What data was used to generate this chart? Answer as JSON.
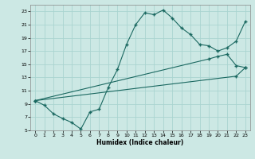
{
  "xlabel": "Humidex (Indice chaleur)",
  "bg_color": "#cce8e4",
  "grid_color": "#aad4d0",
  "line_color": "#1a6860",
  "xlim": [
    -0.5,
    23.5
  ],
  "ylim": [
    5,
    24
  ],
  "xticks": [
    0,
    1,
    2,
    3,
    4,
    5,
    6,
    7,
    8,
    9,
    10,
    11,
    12,
    13,
    14,
    15,
    16,
    17,
    18,
    19,
    20,
    21,
    22,
    23
  ],
  "yticks": [
    5,
    7,
    9,
    11,
    13,
    15,
    17,
    19,
    21,
    23
  ],
  "curve_x": [
    0,
    1,
    2,
    3,
    4,
    5,
    6,
    7,
    8,
    9,
    10,
    11,
    12,
    13,
    14,
    15,
    16,
    17,
    18,
    19,
    20,
    21,
    22,
    23
  ],
  "curve_y": [
    9.5,
    8.8,
    7.5,
    6.8,
    6.2,
    5.2,
    7.8,
    8.2,
    11.5,
    14.2,
    18.0,
    21.0,
    22.8,
    22.5,
    23.2,
    22.0,
    20.5,
    19.5,
    18.0,
    17.8,
    17.0,
    17.5,
    18.5,
    21.5
  ],
  "line2_x": [
    0,
    19,
    20,
    21,
    22,
    23
  ],
  "line2_y": [
    9.5,
    15.8,
    16.2,
    16.5,
    14.8,
    14.5
  ],
  "line3_x": [
    0,
    22,
    23
  ],
  "line3_y": [
    9.5,
    13.2,
    14.5
  ]
}
